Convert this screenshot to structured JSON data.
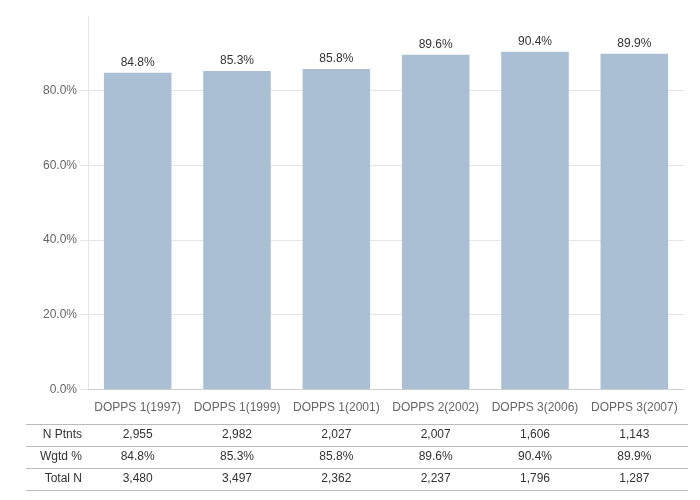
{
  "chart_data": {
    "type": "bar",
    "categories": [
      "DOPPS 1(1997)",
      "DOPPS 1(1999)",
      "DOPPS 1(2001)",
      "DOPPS 2(2002)",
      "DOPPS 3(2006)",
      "DOPPS 3(2007)"
    ],
    "values": [
      84.8,
      85.3,
      85.8,
      89.6,
      90.4,
      89.9
    ],
    "value_labels": [
      "84.8%",
      "85.3%",
      "85.8%",
      "89.6%",
      "90.4%",
      "89.9%"
    ],
    "data_labels": true,
    "color": "#AABFD4",
    "ylim": [
      0,
      100
    ],
    "yticks": [
      {
        "value": 0,
        "label": "0.0%"
      },
      {
        "value": 20,
        "label": "20.0%"
      },
      {
        "value": 40,
        "label": "40.0%"
      },
      {
        "value": 60,
        "label": "60.0%"
      },
      {
        "value": 80,
        "label": "80.0%"
      }
    ],
    "grid": true,
    "table": [
      {
        "name": "N Ptnts",
        "values": [
          2955,
          2982,
          2027,
          2007,
          1606,
          1143
        ],
        "value_labels": [
          "2,955",
          "2,982",
          "2,027",
          "2,007",
          "1,606",
          "1,143"
        ]
      },
      {
        "name": "Wgtd %",
        "values": [
          84.8,
          85.3,
          85.8,
          89.6,
          90.4,
          89.9
        ],
        "value_labels": [
          "84.8%",
          "85.3%",
          "85.8%",
          "89.6%",
          "90.4%",
          "89.9%"
        ]
      },
      {
        "name": "Total N",
        "values": [
          3480,
          3497,
          2362,
          2237,
          1796,
          1287
        ],
        "value_labels": [
          "3,480",
          "3,497",
          "2,362",
          "2,237",
          "1,796",
          "1,287"
        ]
      }
    ]
  }
}
